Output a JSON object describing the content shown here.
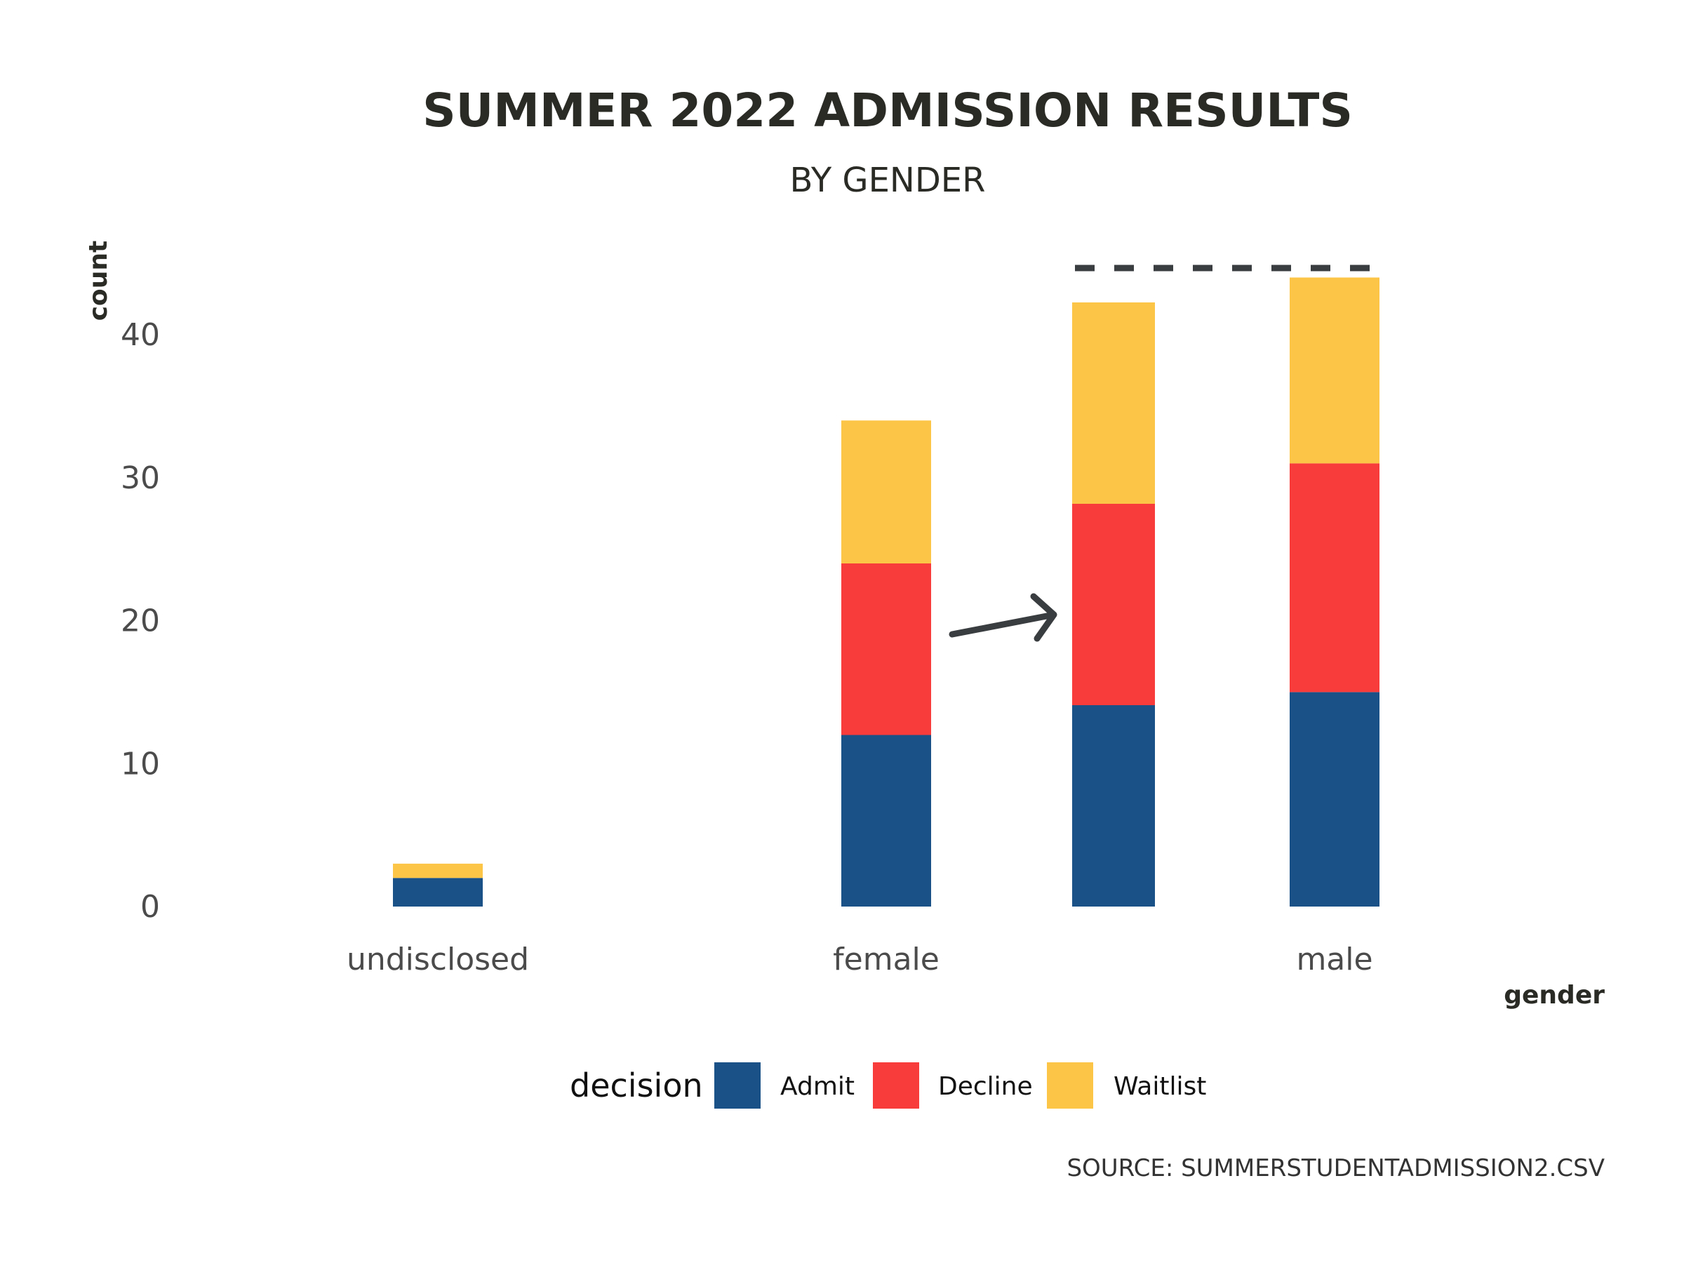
{
  "chart_data": {
    "type": "bar",
    "stacked": true,
    "title": "SUMMER 2022 ADMISSION RESULTS",
    "subtitle": "BY GENDER",
    "xlabel": "gender",
    "ylabel": "count",
    "categories": [
      "undisclosed",
      "female",
      "male"
    ],
    "ylim": [
      0,
      45
    ],
    "yticks": [
      0,
      10,
      20,
      30,
      40
    ],
    "grid": false,
    "legend": {
      "title": "decision",
      "position": "bottom"
    },
    "series": [
      {
        "name": "Admit",
        "color": "#1a5288",
        "values": [
          2,
          12,
          15
        ]
      },
      {
        "name": "Decline",
        "color": "#f83b3b",
        "values": [
          0,
          12,
          16
        ]
      },
      {
        "name": "Waitlist",
        "color": "#fdc548",
        "values": [
          1,
          10,
          13
        ]
      }
    ],
    "annotation": {
      "type": "arrow-to-projected-bar",
      "description_hidden": true,
      "projected_bar": {
        "Admit": 14.1,
        "Decline": 14.1,
        "Waitlist": 14.1
      },
      "dashed_reference_value": 44.6
    },
    "source": "SOURCE: SUMMERSTUDENTADMISSION2.CSV"
  }
}
